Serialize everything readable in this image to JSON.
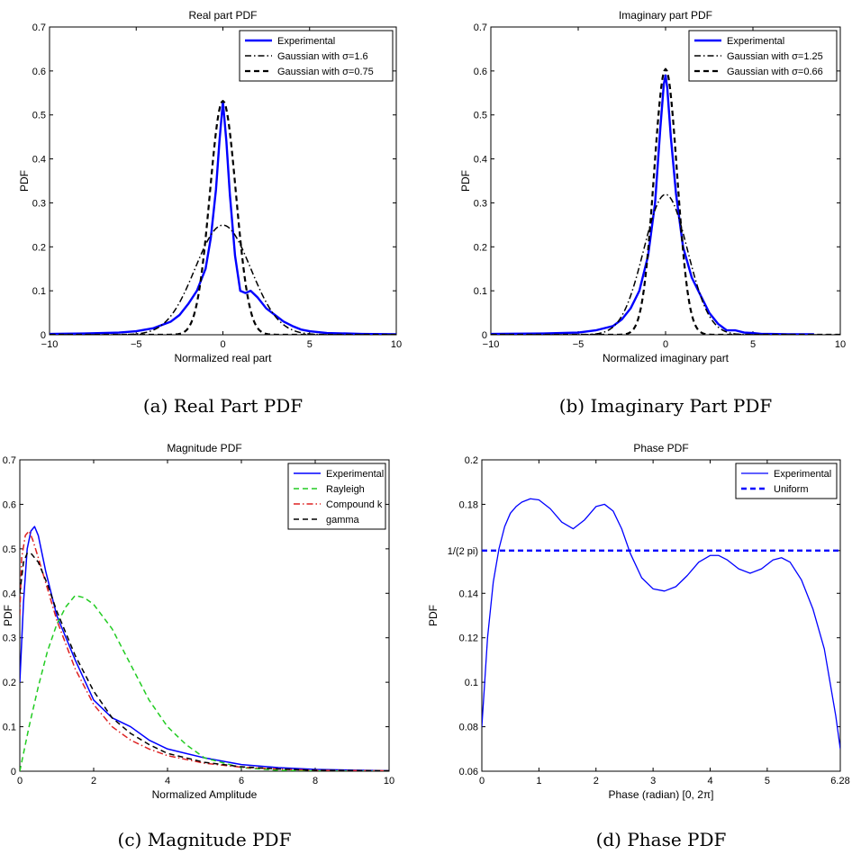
{
  "figure": {
    "ylabel": "PDF"
  },
  "chart_data": [
    {
      "id": "a",
      "type": "line",
      "title": "Real part PDF",
      "xlabel": "Normalized real part",
      "ylabel": "PDF",
      "caption": "(a) Real Part PDF",
      "xlim": [
        -10,
        10
      ],
      "ylim": [
        0,
        0.7
      ],
      "xticks": [
        -10,
        -5,
        0,
        5,
        10
      ],
      "xticklabels": [
        "−10",
        "−5",
        "0",
        "5",
        "10"
      ],
      "yticks": [
        0,
        0.1,
        0.2,
        0.3,
        0.4,
        0.5,
        0.6,
        0.7
      ],
      "yticklabels": [
        "0",
        "0.1",
        "0.2",
        "0.3",
        "0.4",
        "0.5",
        "0.6",
        "0.7"
      ],
      "legend_position": "top-right",
      "series": [
        {
          "name": "Experimental",
          "color": "#0000ff",
          "style": "solid",
          "width": 2.4,
          "x": [
            -10,
            -8,
            -6,
            -5,
            -4,
            -3,
            -2.5,
            -2,
            -1.5,
            -1,
            -0.7,
            -0.4,
            -0.2,
            0,
            0.2,
            0.4,
            0.7,
            1,
            1.3,
            1.6,
            2,
            2.5,
            3,
            3.5,
            4,
            4.5,
            5,
            6,
            8,
            10
          ],
          "y": [
            0.002,
            0.003,
            0.005,
            0.008,
            0.015,
            0.03,
            0.045,
            0.07,
            0.1,
            0.15,
            0.22,
            0.33,
            0.44,
            0.53,
            0.44,
            0.32,
            0.18,
            0.1,
            0.095,
            0.1,
            0.085,
            0.06,
            0.045,
            0.03,
            0.02,
            0.012,
            0.008,
            0.004,
            0.002,
            0.001
          ]
        },
        {
          "name": "Gaussian with σ=1.6",
          "color": "#000000",
          "style": "dashdot",
          "width": 1.5,
          "gaussian_sigma": 1.6
        },
        {
          "name": "Gaussian with σ=0.75",
          "color": "#000000",
          "style": "dashed",
          "width": 2.2,
          "gaussian_sigma": 0.75
        }
      ]
    },
    {
      "id": "b",
      "type": "line",
      "title": "Imaginary part PDF",
      "xlabel": "Normalized imaginary part",
      "ylabel": "PDF",
      "caption": "(b) Imaginary Part PDF",
      "xlim": [
        -10,
        10
      ],
      "ylim": [
        0,
        0.7
      ],
      "xticks": [
        -10,
        -5,
        0,
        5,
        10
      ],
      "xticklabels": [
        "−10",
        "−5",
        "0",
        "5",
        "10"
      ],
      "yticks": [
        0,
        0.1,
        0.2,
        0.3,
        0.4,
        0.5,
        0.6,
        0.7
      ],
      "yticklabels": [
        "0",
        "0.1",
        "0.2",
        "0.3",
        "0.4",
        "0.5",
        "0.6",
        "0.7"
      ],
      "legend_position": "top-right",
      "series": [
        {
          "name": "Experimental",
          "color": "#0000ff",
          "style": "solid",
          "width": 2.4,
          "x": [
            -10,
            -7,
            -5,
            -4,
            -3,
            -2.5,
            -2,
            -1.5,
            -1,
            -0.6,
            -0.3,
            -0.1,
            0,
            0.1,
            0.3,
            0.6,
            1,
            1.5,
            2,
            2.5,
            3,
            3.5,
            4,
            4.5,
            5,
            5.5,
            6,
            7,
            8.5
          ],
          "y": [
            0.002,
            0.003,
            0.005,
            0.01,
            0.02,
            0.035,
            0.06,
            0.1,
            0.18,
            0.3,
            0.47,
            0.57,
            0.59,
            0.56,
            0.45,
            0.32,
            0.2,
            0.13,
            0.09,
            0.05,
            0.025,
            0.01,
            0.01,
            0.005,
            0.004,
            0.002,
            0.002,
            0.001,
            0.001
          ]
        },
        {
          "name": "Gaussian with σ=1.25",
          "color": "#000000",
          "style": "dashdot",
          "width": 1.5,
          "gaussian_sigma": 1.25
        },
        {
          "name": "Gaussian with σ=0.66",
          "color": "#000000",
          "style": "dashed",
          "width": 2.2,
          "gaussian_sigma": 0.66
        }
      ]
    },
    {
      "id": "c",
      "type": "line",
      "title": "Magnitude PDF",
      "xlabel": "Normalized Amplitude",
      "ylabel": "PDF",
      "caption": "(c) Magnitude PDF",
      "xlim": [
        0,
        10
      ],
      "ylim": [
        0,
        0.7
      ],
      "xticks": [
        0,
        2,
        4,
        6,
        8,
        10
      ],
      "xticklabels": [
        "0",
        "2",
        "4",
        "6",
        "8",
        "10"
      ],
      "yticks": [
        0,
        0.1,
        0.2,
        0.3,
        0.4,
        0.5,
        0.6,
        0.7
      ],
      "yticklabels": [
        "0",
        "0.1",
        "0.2",
        "0.3",
        "0.4",
        "0.5",
        "0.6",
        "0.7"
      ],
      "legend_position": "top-right",
      "series": [
        {
          "name": "Experimental",
          "color": "#0000ff",
          "style": "solid",
          "width": 1.5,
          "x": [
            0,
            0.1,
            0.2,
            0.3,
            0.4,
            0.5,
            0.7,
            1,
            1.5,
            2,
            2.5,
            3,
            3.5,
            4,
            4.5,
            5,
            6,
            7,
            8,
            10
          ],
          "y": [
            0.2,
            0.38,
            0.5,
            0.54,
            0.55,
            0.53,
            0.45,
            0.35,
            0.25,
            0.16,
            0.12,
            0.1,
            0.07,
            0.05,
            0.04,
            0.03,
            0.015,
            0.008,
            0.004,
            0.001
          ]
        },
        {
          "name": "Rayleigh",
          "color": "#22cc22",
          "style": "dashed",
          "width": 1.5,
          "x": [
            0,
            0.25,
            0.5,
            0.75,
            1,
            1.25,
            1.5,
            1.75,
            2,
            2.5,
            3,
            3.5,
            4,
            4.5,
            5,
            6,
            7,
            8,
            10
          ],
          "y": [
            0,
            0.1,
            0.19,
            0.27,
            0.33,
            0.37,
            0.395,
            0.39,
            0.375,
            0.32,
            0.24,
            0.16,
            0.1,
            0.06,
            0.03,
            0.008,
            0.002,
            0.0005,
            0
          ]
        },
        {
          "name": "Compound k",
          "color": "#dd2222",
          "style": "dashdot",
          "width": 1.5,
          "x": [
            0,
            0.05,
            0.15,
            0.25,
            0.35,
            0.5,
            0.75,
            1,
            1.5,
            2,
            2.5,
            3,
            3.5,
            4,
            5,
            6,
            7,
            8,
            10
          ],
          "y": [
            0.35,
            0.48,
            0.53,
            0.54,
            0.52,
            0.48,
            0.41,
            0.34,
            0.23,
            0.15,
            0.1,
            0.07,
            0.05,
            0.035,
            0.018,
            0.009,
            0.005,
            0.002,
            0.001
          ]
        },
        {
          "name": "gamma",
          "color": "#000000",
          "style": "dashed",
          "width": 1.5,
          "x": [
            0,
            0.1,
            0.2,
            0.3,
            0.5,
            0.75,
            1,
            1.5,
            2,
            2.5,
            3,
            3.5,
            4,
            5,
            6,
            7,
            8,
            10
          ],
          "y": [
            0.4,
            0.47,
            0.49,
            0.49,
            0.47,
            0.42,
            0.36,
            0.26,
            0.18,
            0.12,
            0.085,
            0.06,
            0.04,
            0.02,
            0.01,
            0.005,
            0.002,
            0.001
          ]
        }
      ]
    },
    {
      "id": "d",
      "type": "line",
      "title": "Phase PDF",
      "xlabel": "Phase (radian) [0, 2π]",
      "ylabel": "PDF",
      "caption": "(d) Phase PDF",
      "xlim": [
        0,
        6.28
      ],
      "ylim": [
        0.06,
        0.2
      ],
      "xticks": [
        0,
        1,
        2,
        3,
        4,
        5,
        6.28
      ],
      "xticklabels": [
        "0",
        "1",
        "2",
        "3",
        "4",
        "5",
        "6.28"
      ],
      "yticks": [
        0.06,
        0.08,
        0.1,
        0.12,
        0.14,
        0.1592,
        0.18,
        0.2
      ],
      "yticklabels": [
        "0.06",
        "0.08",
        "0.1",
        "0.12",
        "0.14",
        "1/(2 pi)",
        "0.18",
        "0.2"
      ],
      "legend_position": "top-right",
      "series": [
        {
          "name": "Experimental",
          "color": "#0000ff",
          "style": "solid",
          "width": 1.3,
          "x": [
            0,
            0.05,
            0.1,
            0.2,
            0.3,
            0.4,
            0.5,
            0.6,
            0.7,
            0.85,
            1.0,
            1.2,
            1.4,
            1.6,
            1.8,
            2.0,
            2.15,
            2.3,
            2.45,
            2.6,
            2.8,
            3.0,
            3.2,
            3.4,
            3.6,
            3.8,
            4.0,
            4.15,
            4.3,
            4.5,
            4.7,
            4.9,
            5.1,
            5.25,
            5.4,
            5.6,
            5.8,
            6.0,
            6.1,
            6.2,
            6.28
          ],
          "y": [
            0.08,
            0.1,
            0.12,
            0.145,
            0.16,
            0.17,
            0.176,
            0.179,
            0.181,
            0.1825,
            0.182,
            0.178,
            0.172,
            0.169,
            0.173,
            0.179,
            0.18,
            0.177,
            0.169,
            0.158,
            0.147,
            0.142,
            0.141,
            0.143,
            0.148,
            0.154,
            0.157,
            0.157,
            0.155,
            0.151,
            0.149,
            0.151,
            0.155,
            0.156,
            0.154,
            0.146,
            0.133,
            0.115,
            0.1,
            0.085,
            0.07
          ]
        },
        {
          "name": "Uniform",
          "color": "#0000ff",
          "style": "dashed",
          "width": 2.4,
          "x": [
            0,
            6.28
          ],
          "y": [
            0.1592,
            0.1592
          ]
        }
      ]
    }
  ]
}
